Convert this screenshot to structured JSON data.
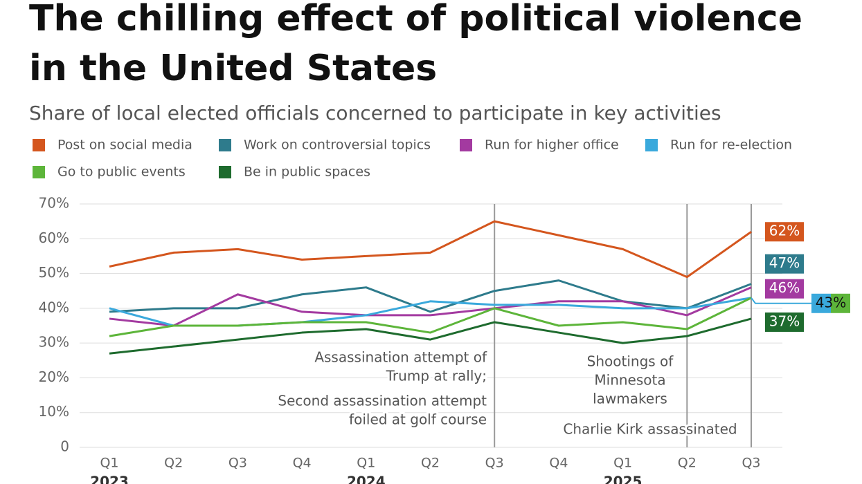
{
  "chart_data": {
    "type": "line",
    "title": [
      "The chilling effect of political violence",
      "in the United States"
    ],
    "subtitle": "Share of local elected officials concerned to participate in key activities",
    "categories": [
      "Q1",
      "Q2",
      "Q3",
      "Q4",
      "Q1",
      "Q2",
      "Q3",
      "Q4",
      "Q1",
      "Q2",
      "Q3"
    ],
    "years": [
      "2023",
      "2024",
      "2025"
    ],
    "series": [
      {
        "name": "Post on social media",
        "color": "#d4561e",
        "values": [
          52,
          56,
          57,
          54,
          55,
          56,
          65,
          61,
          57,
          49,
          62
        ],
        "value_labels": [
          null,
          null,
          null,
          null,
          null,
          null,
          null,
          null,
          null,
          null,
          "62%"
        ]
      },
      {
        "name": "Work on controversial topics",
        "color": "#2e7b8c",
        "values": [
          39,
          40,
          40,
          44,
          46,
          39,
          45,
          48,
          42,
          40,
          47
        ],
        "value_labels": [
          null,
          null,
          null,
          null,
          null,
          null,
          null,
          null,
          null,
          null,
          "47%"
        ]
      },
      {
        "name": "Run for higher office",
        "color": "#a33aa0",
        "values": [
          37,
          35,
          44,
          39,
          38,
          38,
          40,
          42,
          42,
          38,
          46
        ],
        "value_labels": [
          null,
          null,
          null,
          null,
          null,
          null,
          null,
          null,
          null,
          null,
          "46%"
        ]
      },
      {
        "name": "Run for re-election",
        "color": "#3aa9dc",
        "values": [
          40,
          35,
          35,
          36,
          38,
          42,
          41,
          41,
          40,
          40,
          43
        ],
        "value_labels": [
          null,
          null,
          null,
          null,
          null,
          null,
          null,
          null,
          null,
          null,
          "43%"
        ]
      },
      {
        "name": "Go to public events",
        "color": "#5db53a",
        "values": [
          32,
          35,
          35,
          36,
          36,
          33,
          40,
          35,
          36,
          34,
          43
        ]
      },
      {
        "name": "Be in public spaces",
        "color": "#1e6b2e",
        "values": [
          27,
          29,
          31,
          33,
          34,
          31,
          36,
          33,
          30,
          32,
          37
        ],
        "value_labels": [
          null,
          null,
          null,
          null,
          null,
          null,
          null,
          null,
          null,
          null,
          "37%"
        ]
      }
    ],
    "ylim": [
      0,
      70
    ],
    "yticks": [
      0,
      {
        "value": 10,
        "label": "10%"
      },
      {
        "value": 20,
        "label": "20%"
      },
      {
        "value": 30,
        "label": "30%"
      },
      {
        "value": 40,
        "label": "40%"
      },
      {
        "value": 50,
        "label": "50%"
      },
      {
        "value": 60,
        "label": "60%"
      },
      {
        "value": 70,
        "label": "70%"
      }
    ],
    "grid": true,
    "annotations": [
      {
        "lines": [
          "Assassination attempt of",
          "Trump at rally;",
          "Second assassination attempt",
          "foiled at golf course"
        ]
      },
      {
        "lines": [
          "Shootings of",
          "Minnesota",
          "lawmakers"
        ]
      },
      {
        "lines": [
          "Charlie Kirk assassinated"
        ]
      }
    ]
  }
}
